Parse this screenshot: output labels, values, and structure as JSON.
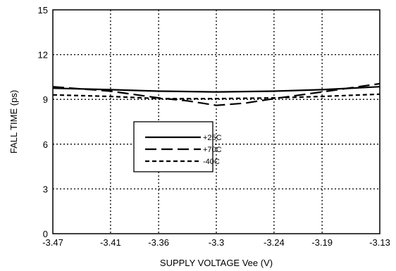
{
  "chart_data": {
    "type": "line",
    "xlabel": "SUPPLY VOLTAGE Vee (V)",
    "ylabel": "FALL TIME (ps)",
    "xlim": [
      -3.47,
      -3.13
    ],
    "ylim": [
      0,
      15
    ],
    "x_ticks": [
      -3.47,
      -3.41,
      -3.36,
      -3.3,
      -3.24,
      -3.19,
      -3.13
    ],
    "x_tick_labels": [
      "-3.47",
      "-3.41",
      "-3.36",
      "-3.3",
      "-3.24",
      "-3.19",
      "-3.13"
    ],
    "y_ticks": [
      0,
      3,
      6,
      9,
      12,
      15
    ],
    "y_tick_labels": [
      "0",
      "3",
      "6",
      "9",
      "12",
      "15"
    ],
    "grid": true,
    "legend_position": "center-left",
    "series": [
      {
        "name": "+25C",
        "style": "solid",
        "x": [
          -3.47,
          -3.41,
          -3.36,
          -3.3,
          -3.24,
          -3.19,
          -3.13
        ],
        "y": [
          9.75,
          9.65,
          9.55,
          9.5,
          9.55,
          9.65,
          9.85
        ]
      },
      {
        "name": "+70C",
        "style": "long-dash",
        "x": [
          -3.47,
          -3.41,
          -3.36,
          -3.33,
          -3.3,
          -3.27,
          -3.24,
          -3.19,
          -3.13
        ],
        "y": [
          9.85,
          9.55,
          9.1,
          8.9,
          8.6,
          8.75,
          9.05,
          9.5,
          10.05
        ]
      },
      {
        "name": "-40C",
        "style": "short-dash",
        "x": [
          -3.47,
          -3.41,
          -3.36,
          -3.3,
          -3.24,
          -3.19,
          -3.13
        ],
        "y": [
          9.3,
          9.2,
          9.05,
          9.05,
          9.1,
          9.2,
          9.35
        ]
      }
    ]
  }
}
